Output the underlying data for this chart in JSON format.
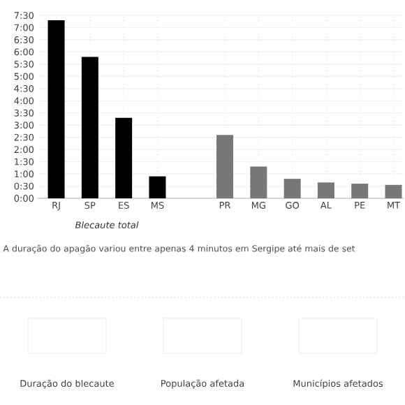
{
  "chart_data": {
    "type": "bar",
    "categories": [
      "RJ",
      "SP",
      "ES",
      "MS",
      null,
      "PR",
      "MG",
      "GO",
      "AL",
      "PE",
      "MT"
    ],
    "values": [
      7.3,
      5.8,
      3.3,
      0.9,
      null,
      2.6,
      1.3,
      0.8,
      0.65,
      0.6,
      0.55
    ],
    "colors": [
      "#000000",
      "#000000",
      "#000000",
      "#000000",
      "#777777",
      "#777777",
      "#777777",
      "#777777",
      "#777777",
      "#777777",
      "#777777"
    ],
    "ylim": [
      0,
      7.5
    ],
    "yticks": [
      {
        "value": 0,
        "label": "0:00"
      },
      {
        "value": 0.5,
        "label": "0:30"
      },
      {
        "value": 1,
        "label": "1:00"
      },
      {
        "value": 1.5,
        "label": "1:30"
      },
      {
        "value": 2,
        "label": "2:00"
      },
      {
        "value": 2.5,
        "label": "2:30"
      },
      {
        "value": 3,
        "label": "3:00"
      },
      {
        "value": 3.5,
        "label": "3:30"
      },
      {
        "value": 4,
        "label": "4:00"
      },
      {
        "value": 4.5,
        "label": "4:30"
      },
      {
        "value": 5,
        "label": "5:00"
      },
      {
        "value": 5.5,
        "label": "5:30"
      },
      {
        "value": 6,
        "label": "6:00"
      },
      {
        "value": 6.5,
        "label": "6:30"
      },
      {
        "value": 7,
        "label": "7:00"
      },
      {
        "value": 7.5,
        "label": "7:30"
      }
    ],
    "grid": true,
    "annotations": [
      "*Blecaute total*",
      "A duração do apagão variou entre apenas 4 minutos em Sergipe até mais de set",
      "Duração do blecaute",
      "População afetada",
      "Municípios afetados"
    ]
  }
}
